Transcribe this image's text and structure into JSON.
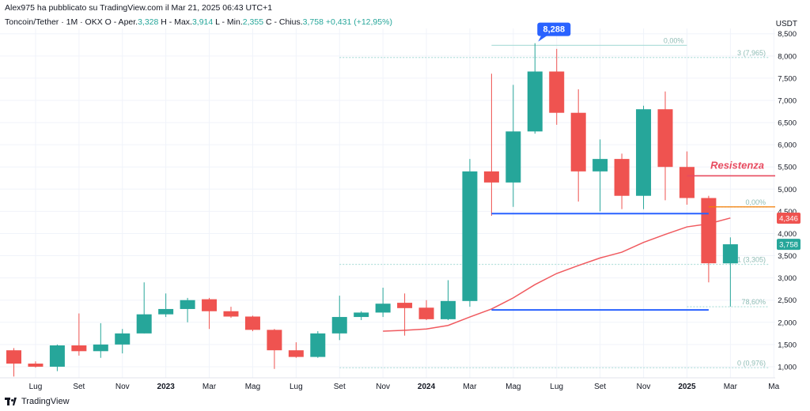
{
  "header": {
    "publisher": "Alex975 ha pubblicato su TradingView.com il Mar 21, 2025 06:43 UTC+1",
    "symbol": "Toncoin/Tether · 1M · OKX",
    "o_label": "O - Aper.",
    "o_value": "3,328",
    "h_label": "H - Max.",
    "h_value": "3,914",
    "l_label": "L - Min.",
    "l_value": "2,355",
    "c_label": "C - Chius.",
    "c_value": "3,758",
    "change": "+0,431 (+12,95%)"
  },
  "footer": {
    "brand": "TradingView"
  },
  "colors": {
    "up": "#26a69a",
    "down": "#ef5350",
    "ma": "#f05a5f",
    "support": "#2962ff",
    "resistance": "#e84a5f",
    "fib": "#b2dfdb",
    "callout": "#2962ff",
    "axis_text": "#131722"
  },
  "chart_data": {
    "type": "candlestick",
    "title": "",
    "ylabel": "USDT",
    "y_scale": "linear",
    "ylim": [
      0.75,
      8.62
    ],
    "y_ticks": [
      "1,000",
      "1,500",
      "2,000",
      "2,500",
      "3,000",
      "3,500",
      "4,000",
      "4,500",
      "5,000",
      "5,500",
      "6,000",
      "6,500",
      "7,000",
      "7,500",
      "8,000",
      "8,500"
    ],
    "x_ticks": [
      {
        "label": "Lug",
        "at": "2022-07"
      },
      {
        "label": "Set",
        "at": "2022-09"
      },
      {
        "label": "Nov",
        "at": "2022-11"
      },
      {
        "label": "2023",
        "at": "2023-01"
      },
      {
        "label": "Mar",
        "at": "2023-03"
      },
      {
        "label": "Mag",
        "at": "2023-05"
      },
      {
        "label": "Lug",
        "at": "2023-07"
      },
      {
        "label": "Set",
        "at": "2023-09"
      },
      {
        "label": "Nov",
        "at": "2023-11"
      },
      {
        "label": "2024",
        "at": "2024-01"
      },
      {
        "label": "Mar",
        "at": "2024-03"
      },
      {
        "label": "Mag",
        "at": "2024-05"
      },
      {
        "label": "Lug",
        "at": "2024-07"
      },
      {
        "label": "Set",
        "at": "2024-09"
      },
      {
        "label": "Nov",
        "at": "2024-11"
      },
      {
        "label": "2025",
        "at": "2025-01"
      },
      {
        "label": "Mar",
        "at": "2025-03"
      },
      {
        "label": "Ma",
        "at": "2025-05"
      }
    ],
    "candles": [
      {
        "t": "2022-06",
        "o": 1.37,
        "h": 1.42,
        "l": 0.78,
        "c": 1.07
      },
      {
        "t": "2022-07",
        "o": 1.07,
        "h": 1.12,
        "l": 0.98,
        "c": 1.0
      },
      {
        "t": "2022-08",
        "o": 1.0,
        "h": 1.5,
        "l": 0.9,
        "c": 1.48
      },
      {
        "t": "2022-09",
        "o": 1.48,
        "h": 2.2,
        "l": 1.25,
        "c": 1.35
      },
      {
        "t": "2022-10",
        "o": 1.35,
        "h": 1.98,
        "l": 1.2,
        "c": 1.5
      },
      {
        "t": "2022-11",
        "o": 1.5,
        "h": 1.85,
        "l": 1.3,
        "c": 1.75
      },
      {
        "t": "2022-12",
        "o": 1.75,
        "h": 2.9,
        "l": 1.75,
        "c": 2.18
      },
      {
        "t": "2023-01",
        "o": 2.18,
        "h": 2.65,
        "l": 2.12,
        "c": 2.3
      },
      {
        "t": "2023-02",
        "o": 2.3,
        "h": 2.55,
        "l": 2.0,
        "c": 2.5
      },
      {
        "t": "2023-03",
        "o": 2.52,
        "h": 2.55,
        "l": 1.85,
        "c": 2.25
      },
      {
        "t": "2023-04",
        "o": 2.25,
        "h": 2.35,
        "l": 2.1,
        "c": 2.13
      },
      {
        "t": "2023-05",
        "o": 2.13,
        "h": 2.15,
        "l": 1.8,
        "c": 1.83
      },
      {
        "t": "2023-06",
        "o": 1.83,
        "h": 1.85,
        "l": 0.95,
        "c": 1.37
      },
      {
        "t": "2023-07",
        "o": 1.37,
        "h": 1.55,
        "l": 1.2,
        "c": 1.22
      },
      {
        "t": "2023-08",
        "o": 1.22,
        "h": 1.8,
        "l": 1.2,
        "c": 1.75
      },
      {
        "t": "2023-09",
        "o": 1.75,
        "h": 2.6,
        "l": 1.6,
        "c": 2.12
      },
      {
        "t": "2023-10",
        "o": 2.12,
        "h": 2.25,
        "l": 2.05,
        "c": 2.22
      },
      {
        "t": "2023-11",
        "o": 2.22,
        "h": 2.78,
        "l": 2.12,
        "c": 2.42
      },
      {
        "t": "2023-12",
        "o": 2.44,
        "h": 2.65,
        "l": 1.7,
        "c": 2.32
      },
      {
        "t": "2024-01",
        "o": 2.33,
        "h": 2.5,
        "l": 2.05,
        "c": 2.07
      },
      {
        "t": "2024-02",
        "o": 2.07,
        "h": 2.95,
        "l": 2.05,
        "c": 2.48
      },
      {
        "t": "2024-03",
        "o": 2.48,
        "h": 5.68,
        "l": 2.35,
        "c": 5.4
      },
      {
        "t": "2024-04",
        "o": 5.4,
        "h": 7.6,
        "l": 4.4,
        "c": 5.15
      },
      {
        "t": "2024-05",
        "o": 5.15,
        "h": 7.35,
        "l": 4.6,
        "c": 6.3
      },
      {
        "t": "2024-06",
        "o": 6.3,
        "h": 8.288,
        "l": 6.25,
        "c": 7.65
      },
      {
        "t": "2024-07",
        "o": 7.65,
        "h": 8.16,
        "l": 6.45,
        "c": 6.72
      },
      {
        "t": "2024-08",
        "o": 6.72,
        "h": 7.25,
        "l": 4.72,
        "c": 5.4
      },
      {
        "t": "2024-09",
        "o": 5.4,
        "h": 6.12,
        "l": 4.5,
        "c": 5.68
      },
      {
        "t": "2024-10",
        "o": 5.68,
        "h": 5.8,
        "l": 4.55,
        "c": 4.85
      },
      {
        "t": "2024-11",
        "o": 4.85,
        "h": 6.88,
        "l": 4.55,
        "c": 6.8
      },
      {
        "t": "2024-12",
        "o": 6.8,
        "h": 7.2,
        "l": 4.75,
        "c": 5.5
      },
      {
        "t": "2025-01",
        "o": 5.5,
        "h": 5.85,
        "l": 4.65,
        "c": 4.8
      },
      {
        "t": "2025-02",
        "o": 4.8,
        "h": 4.85,
        "l": 2.9,
        "c": 3.33
      },
      {
        "t": "2025-03",
        "o": 3.328,
        "h": 3.914,
        "l": 2.355,
        "c": 3.758
      }
    ],
    "moving_average": [
      {
        "t": "2023-11",
        "v": 1.8
      },
      {
        "t": "2023-12",
        "v": 1.82
      },
      {
        "t": "2024-01",
        "v": 1.85
      },
      {
        "t": "2024-02",
        "v": 1.93
      },
      {
        "t": "2024-03",
        "v": 2.12
      },
      {
        "t": "2024-04",
        "v": 2.3
      },
      {
        "t": "2024-05",
        "v": 2.55
      },
      {
        "t": "2024-06",
        "v": 2.85
      },
      {
        "t": "2024-07",
        "v": 3.1
      },
      {
        "t": "2024-08",
        "v": 3.28
      },
      {
        "t": "2024-09",
        "v": 3.45
      },
      {
        "t": "2024-10",
        "v": 3.58
      },
      {
        "t": "2024-11",
        "v": 3.8
      },
      {
        "t": "2024-12",
        "v": 3.98
      },
      {
        "t": "2025-01",
        "v": 4.15
      },
      {
        "t": "2025-02",
        "v": 4.22
      },
      {
        "t": "2025-03",
        "v": 4.35
      }
    ],
    "horizontal_lines": [
      {
        "name": "resistance",
        "value": 5.3,
        "from": "2025-01",
        "label": "Resistenza"
      },
      {
        "name": "support-upper",
        "value": 4.45,
        "from": "2024-04",
        "to": "2025-02"
      },
      {
        "name": "support-lower",
        "value": 2.28,
        "from": "2024-04",
        "to": "2025-02"
      },
      {
        "name": "orange-level",
        "value": 4.6,
        "from": "2025-02"
      }
    ],
    "fib_levels": [
      {
        "label": "0,00%",
        "value": 8.24,
        "from": "2024-04",
        "to": "2025-01"
      },
      {
        "label": "3 (7,965)",
        "value": 7.965,
        "from": "2023-09"
      },
      {
        "label": "0,00%",
        "value": 4.6,
        "from": "2025-02"
      },
      {
        "label": "1 (3,305)",
        "value": 3.305,
        "from": "2023-09"
      },
      {
        "label": "78,60%",
        "value": 2.35,
        "from": "2025-01"
      },
      {
        "label": "0 (0,976)",
        "value": 0.976,
        "from": "2023-09"
      }
    ],
    "callout": {
      "label": "8,288",
      "value": 8.288,
      "at": "2024-06"
    },
    "price_tags": [
      {
        "label": "4,346",
        "value": 4.346,
        "color": "down"
      },
      {
        "label": "3,758",
        "value": 3.758,
        "color": "up"
      }
    ]
  }
}
